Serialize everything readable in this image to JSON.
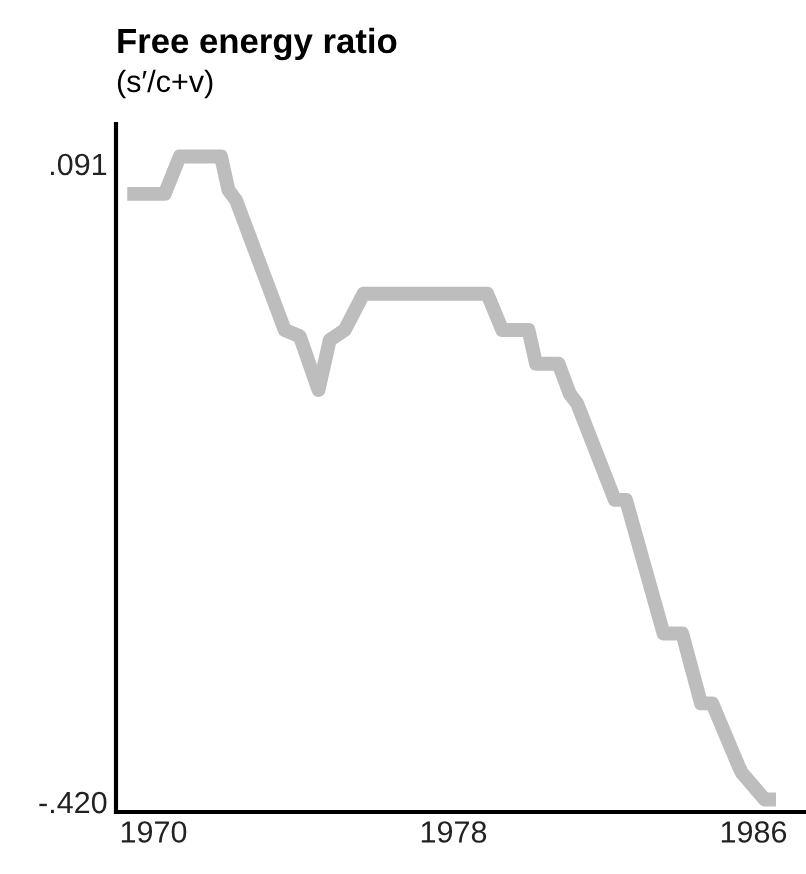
{
  "chart_data": {
    "type": "line",
    "title": "Free energy ratio",
    "subtitle": "(s′/c+v)",
    "x": [
      1969.3,
      1970.3,
      1970.7,
      1971.8,
      1972.0,
      1972.2,
      1973.5,
      1973.9,
      1974.4,
      1974.7,
      1975.1,
      1975.6,
      1978.9,
      1979.3,
      1980.0,
      1980.2,
      1980.8,
      1981.1,
      1981.3,
      1982.3,
      1982.6,
      1983.6,
      1984.1,
      1984.6,
      1984.9,
      1985.6,
      1985.7,
      1986.3,
      1986.6
    ],
    "series": [
      {
        "color": "#bdbdbd",
        "values": [
          0.067,
          0.067,
          0.097,
          0.097,
          0.07,
          0.062,
          -0.042,
          -0.047,
          -0.09,
          -0.05,
          -0.042,
          -0.013,
          -0.013,
          -0.042,
          -0.042,
          -0.069,
          -0.069,
          -0.093,
          -0.101,
          -0.178,
          -0.178,
          -0.285,
          -0.285,
          -0.341,
          -0.341,
          -0.391,
          -0.397,
          -0.418,
          -0.418
        ]
      }
    ],
    "xlim": [
      1969,
      1987.4
    ],
    "xticks": [
      1970,
      1978,
      1986
    ],
    "ylim": [
      -0.428,
      0.123
    ],
    "yticks": [
      {
        "value": 0.091,
        "label": ".091"
      },
      {
        "value": -0.42,
        "label": "-.420"
      }
    ],
    "grid": false,
    "legend": false,
    "marker": "none",
    "line_style": "solid"
  }
}
